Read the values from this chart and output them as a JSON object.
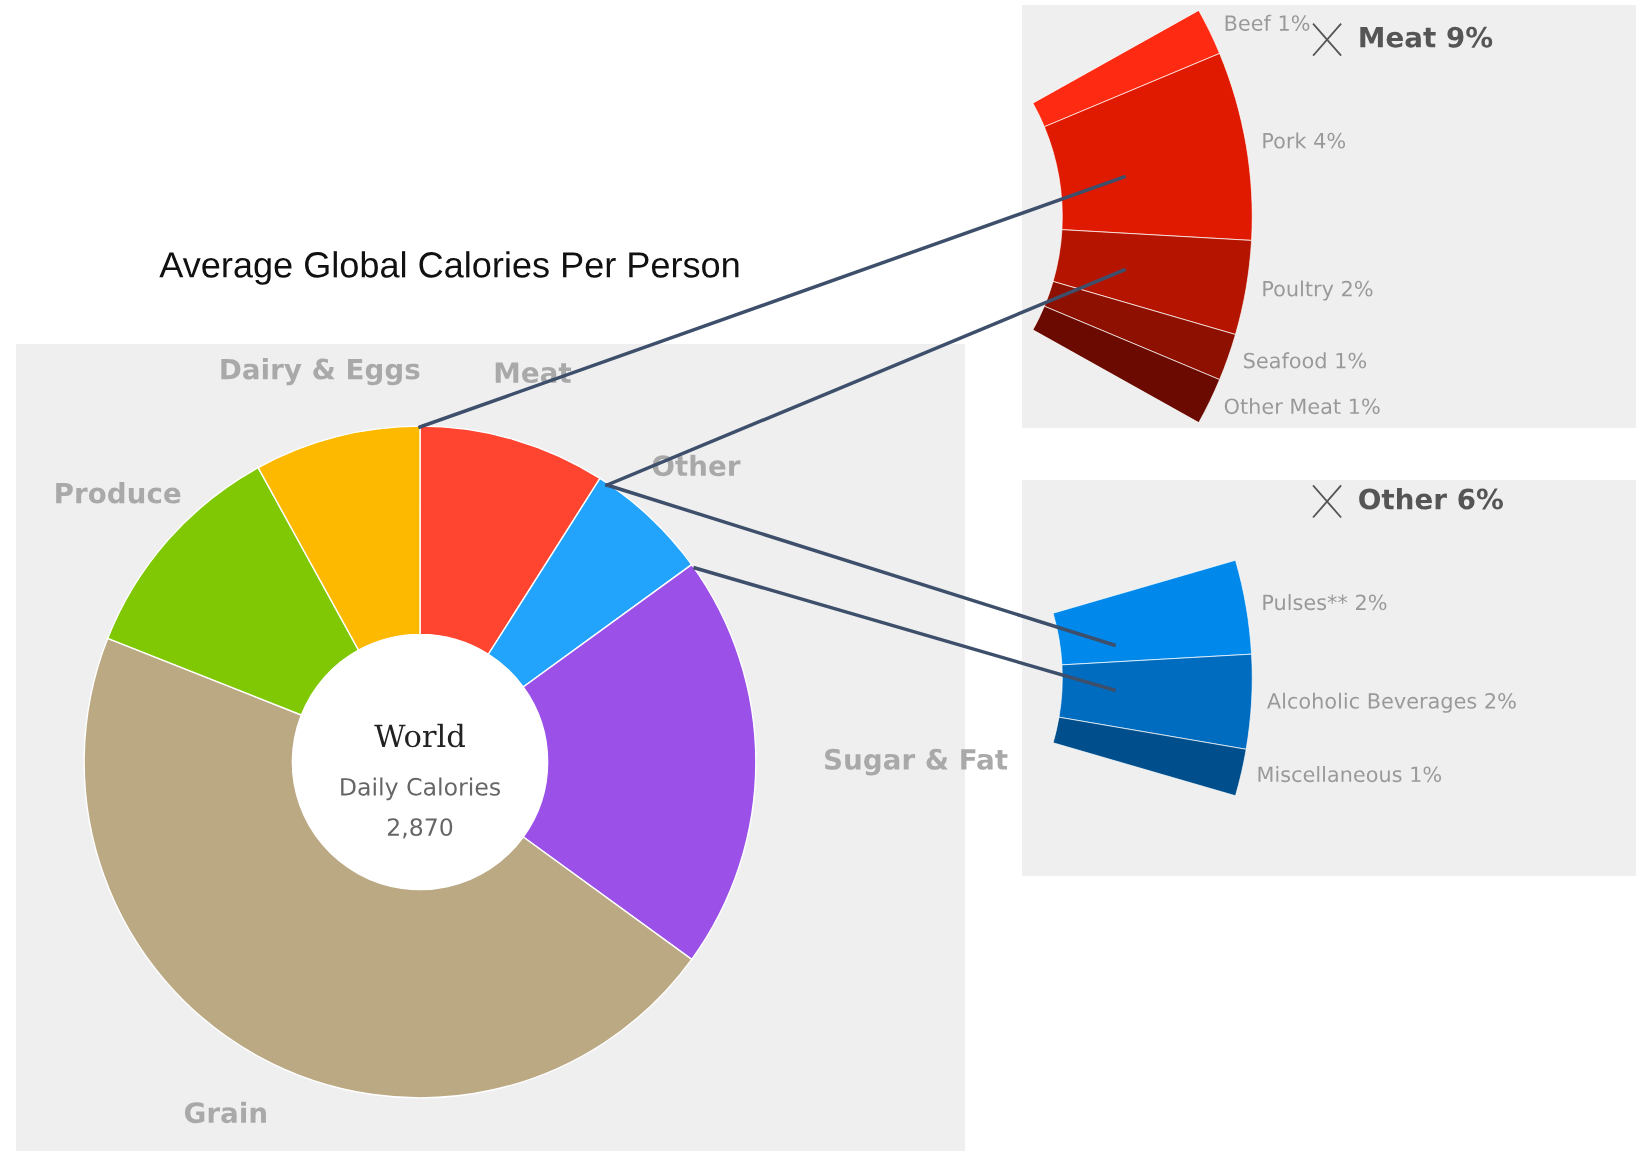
{
  "chart_data": [
    {
      "type": "donut",
      "title": "Average Global Calories Per Person",
      "categories": [
        "Meat",
        "Other",
        "Sugar & Fat",
        "Grain",
        "Produce",
        "Dairy & Eggs"
      ],
      "values": [
        9,
        6,
        20,
        46,
        11,
        8
      ],
      "colors": [
        "#ff4530",
        "#22a3fc",
        "#9b51e8",
        "#bba984",
        "#7fc803",
        "#fdb900"
      ],
      "annotations": [
        "World",
        "Daily Calories",
        "2,870"
      ]
    },
    {
      "type": "donut",
      "title": "Meat 9%",
      "categories": [
        "Beef 1%",
        "Pork 4%",
        "Poultry 2%",
        "Seafood 1%",
        "Other Meat 1%"
      ],
      "values": [
        1,
        4,
        2,
        1,
        1
      ],
      "colors": [
        "#ff2a12",
        "#e01a00",
        "#b51500",
        "#8e1000",
        "#6a0a00"
      ]
    },
    {
      "type": "donut",
      "title": "Other 6%",
      "categories": [
        "Pulses** 2%",
        "Alcoholic Beverages 2%",
        "Miscellaneous 1%"
      ],
      "values": [
        2,
        2,
        1
      ],
      "colors": [
        "#0088ea",
        "#006cc0",
        "#004f8c"
      ]
    }
  ]
}
